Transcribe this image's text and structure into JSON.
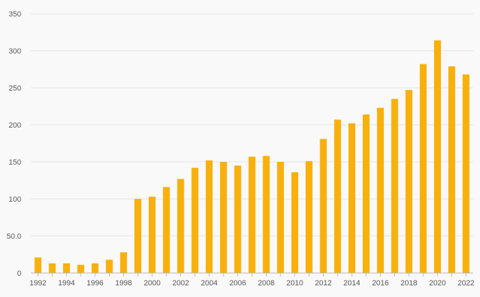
{
  "chart_data": {
    "type": "bar",
    "title": "",
    "xlabel": "",
    "ylabel": "",
    "ylim": [
      0,
      350
    ],
    "yticks": [
      0,
      50,
      100,
      150,
      200,
      250,
      300,
      350
    ],
    "ytick_labels": [
      "0",
      "50.0",
      "100",
      "150",
      "200",
      "250",
      "300",
      "350"
    ],
    "grid": true,
    "legend": "none",
    "bar_color": "#f8b00c",
    "categories": [
      "1992",
      "1993",
      "1994",
      "1995",
      "1996",
      "1997",
      "1998",
      "1999",
      "2000",
      "2001",
      "2002",
      "2003",
      "2004",
      "2005",
      "2006",
      "2007",
      "2008",
      "2009",
      "2010",
      "2011",
      "2012",
      "2013",
      "2014",
      "2015",
      "2016",
      "2017",
      "2018",
      "2019",
      "2020",
      "2021",
      "2022"
    ],
    "xtick_labels": [
      "1992",
      "",
      "1994",
      "",
      "1996",
      "",
      "1998",
      "",
      "2000",
      "",
      "2002",
      "",
      "2004",
      "",
      "2006",
      "",
      "2008",
      "",
      "2010",
      "",
      "2012",
      "",
      "2014",
      "",
      "2016",
      "",
      "2018",
      "",
      "2020",
      "",
      "2022"
    ],
    "values": [
      21,
      13,
      13,
      11,
      13,
      18,
      28,
      100,
      103,
      116,
      127,
      142,
      152,
      150,
      145,
      157,
      158,
      150,
      136,
      151,
      181,
      207,
      202,
      214,
      223,
      235,
      247,
      282,
      314,
      279,
      268
    ]
  }
}
